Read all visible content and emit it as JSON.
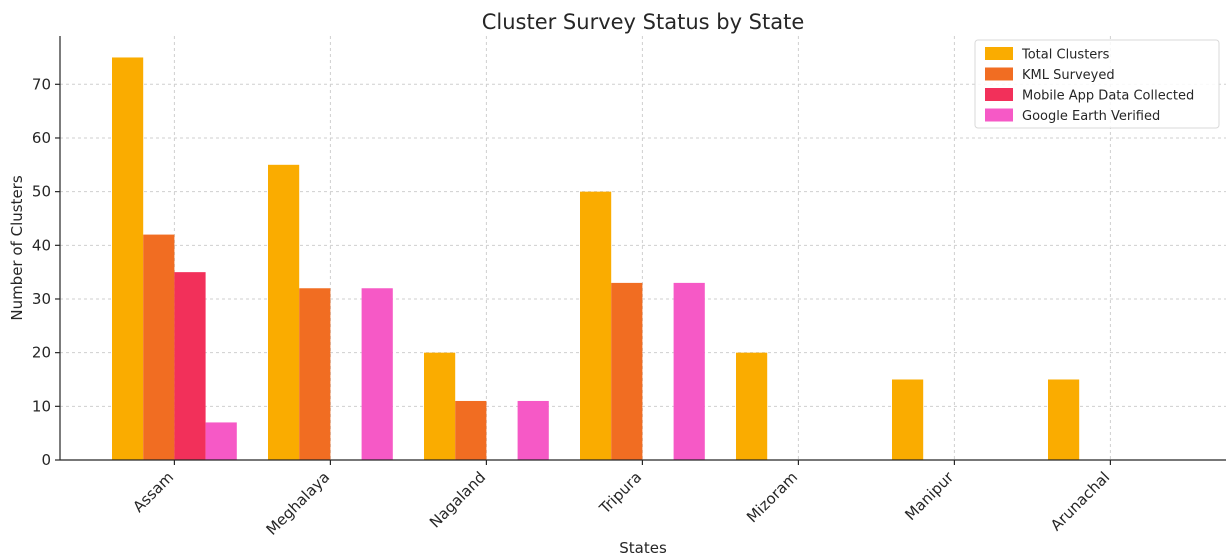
{
  "chart_data": {
    "type": "bar",
    "title": "Cluster Survey Status by State",
    "xlabel": "States",
    "ylabel": "Number of Clusters",
    "categories": [
      "Assam",
      "Meghalaya",
      "Nagaland",
      "Tripura",
      "Mizoram",
      "Manipur",
      "Arunachal"
    ],
    "series": [
      {
        "name": "Total Clusters",
        "color": "#FAAC00",
        "values": [
          75,
          55,
          20,
          50,
          20,
          15,
          15
        ]
      },
      {
        "name": "KML Surveyed",
        "color": "#F16D22",
        "values": [
          42,
          32,
          11,
          33,
          0,
          0,
          0
        ]
      },
      {
        "name": "Mobile App Data Collected",
        "color": "#F2305A",
        "values": [
          35,
          0,
          0,
          0,
          0,
          0,
          0
        ]
      },
      {
        "name": "Google Earth Verified",
        "color": "#F659C6",
        "values": [
          7,
          32,
          11,
          33,
          0,
          0,
          0
        ]
      }
    ],
    "ylim": [
      0,
      79
    ],
    "yticks": [
      0,
      10,
      20,
      30,
      40,
      50,
      60,
      70
    ],
    "grid": true,
    "legend_position": "top-right"
  }
}
